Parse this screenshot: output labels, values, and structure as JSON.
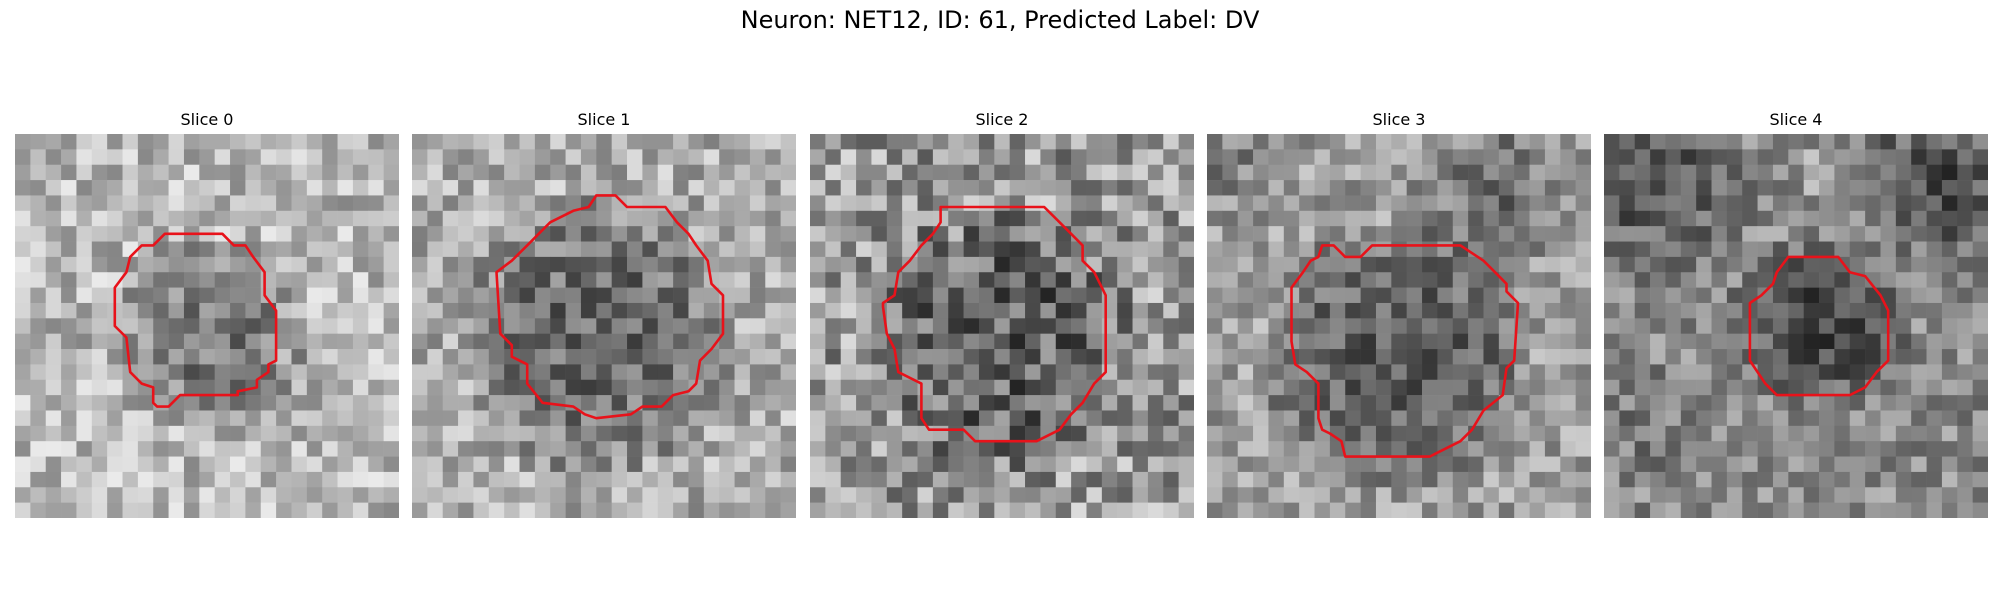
{
  "figure": {
    "title": "Neuron: NET12, ID: 61, Predicted Label: DV"
  },
  "colors": {
    "contour": "#e8121a",
    "background": "#ffffff"
  },
  "panels": [
    {
      "title": "Slice 0"
    },
    {
      "title": "Slice 1"
    },
    {
      "title": "Slice 2"
    },
    {
      "title": "Slice 3"
    },
    {
      "title": "Slice 4"
    }
  ]
}
